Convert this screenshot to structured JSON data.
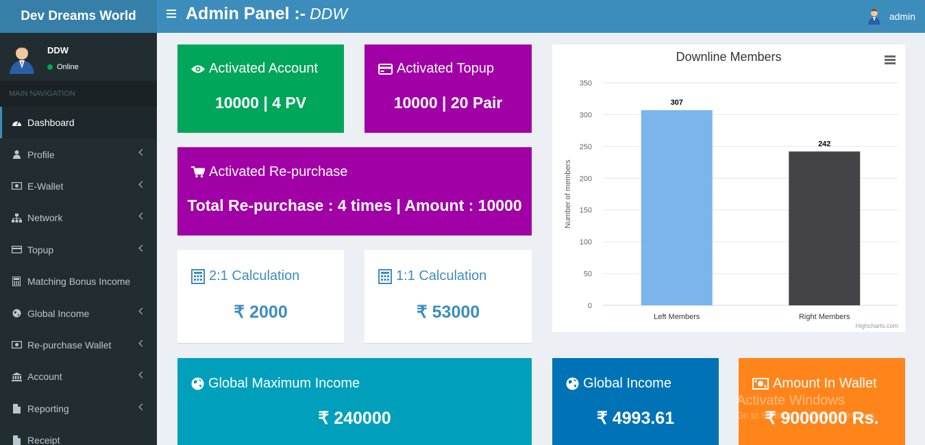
{
  "brand": "Dev Dreams World",
  "header": {
    "title": "Admin Panel :-",
    "subtitle": "DDW",
    "user": "admin"
  },
  "sidebar": {
    "user_name": "DDW",
    "status": "Online",
    "nav_header": "MAIN NAVIGATION",
    "items": [
      {
        "label": "Dashboard",
        "icon": "dashboard-icon"
      },
      {
        "label": "Profile",
        "icon": "user-icon"
      },
      {
        "label": "E-Wallet",
        "icon": "money-icon"
      },
      {
        "label": "Network",
        "icon": "sitemap-icon"
      },
      {
        "label": "Topup",
        "icon": "credit-card-icon"
      },
      {
        "label": "Matching Bonus Income",
        "icon": "calculator-icon"
      },
      {
        "label": "Global Income",
        "icon": "globe-icon"
      },
      {
        "label": "Re-purchase Wallet",
        "icon": "money-icon"
      },
      {
        "label": "Account",
        "icon": "bank-icon"
      },
      {
        "label": "Reporting",
        "icon": "file-icon"
      },
      {
        "label": "Receipt",
        "icon": "file-icon"
      }
    ]
  },
  "cards": {
    "activated_account": {
      "title": "Activated Account",
      "value": "10000 | 4 PV"
    },
    "activated_topup": {
      "title": "Activated Topup",
      "value": "10000 | 20 Pair"
    },
    "activated_repurchase": {
      "title": "Activated Re-purchase",
      "value": "Total Re-purchase : 4 times | Amount : 10000"
    },
    "calc_2_1": {
      "title": "2:1 Calculation",
      "value": "2000"
    },
    "calc_1_1": {
      "title": "1:1 Calculation",
      "value": "53000"
    },
    "global_max": {
      "title": "Global Maximum Income",
      "value": "240000"
    },
    "global_income": {
      "title": "Global Income",
      "value": "4993.61"
    },
    "wallet": {
      "title": "Amount In Wallet",
      "value": "9000000 Rs."
    }
  },
  "currency_symbol": "₹",
  "watermark": {
    "line1": "Activate Windows",
    "line2": "Go to Settings to activate Windows."
  },
  "chart_data": {
    "type": "bar",
    "title": "Downline Members",
    "ylabel": "Number of members",
    "categories": [
      "Left Members",
      "Right Members"
    ],
    "values": [
      307,
      242
    ],
    "colors": [
      "#7cb5ec",
      "#434348"
    ],
    "ylim": [
      0,
      350
    ],
    "yticks": [
      0,
      50,
      100,
      150,
      200,
      250,
      300,
      350
    ],
    "credits": "Highcharts.com"
  }
}
